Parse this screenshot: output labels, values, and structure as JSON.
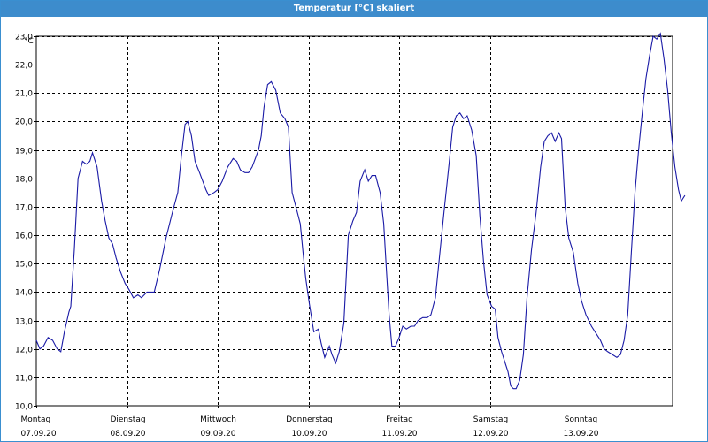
{
  "window": {
    "title": "Temperatur [°C] skaliert"
  },
  "chart_data": {
    "type": "line",
    "title": "Temperatur [°C] skaliert",
    "ylabel": "°C",
    "ylim": [
      10.0,
      23.0
    ],
    "xlim": [
      0,
      7
    ],
    "grid": true,
    "y_ticks": [
      "10,0",
      "11,0",
      "12,0",
      "13,0",
      "14,0",
      "15,0",
      "16,0",
      "17,0",
      "18,0",
      "19,0",
      "20,0",
      "21,0",
      "22,0",
      "23,0"
    ],
    "x_ticks": [
      {
        "day": "Montag",
        "date": "07.09.20"
      },
      {
        "day": "Dienstag",
        "date": "08.09.20"
      },
      {
        "day": "Mittwoch",
        "date": "09.09.20"
      },
      {
        "day": "Donnerstag",
        "date": "10.09.20"
      },
      {
        "day": "Freitag",
        "date": "11.09.20"
      },
      {
        "day": "Samstag",
        "date": "12.09.20"
      },
      {
        "day": "Sonntag",
        "date": "13.09.20"
      }
    ],
    "series": [
      {
        "color": "#1a1aa6",
        "points": [
          [
            0.0,
            12.3
          ],
          [
            0.04,
            12.0
          ],
          [
            0.08,
            12.1
          ],
          [
            0.13,
            12.4
          ],
          [
            0.18,
            12.3
          ],
          [
            0.23,
            12.0
          ],
          [
            0.27,
            11.9
          ],
          [
            0.31,
            12.6
          ],
          [
            0.36,
            13.3
          ],
          [
            0.38,
            13.5
          ],
          [
            0.42,
            15.5
          ],
          [
            0.46,
            18.0
          ],
          [
            0.51,
            18.6
          ],
          [
            0.55,
            18.5
          ],
          [
            0.59,
            18.6
          ],
          [
            0.62,
            18.9
          ],
          [
            0.67,
            18.4
          ],
          [
            0.72,
            17.2
          ],
          [
            0.76,
            16.5
          ],
          [
            0.8,
            15.9
          ],
          [
            0.84,
            15.7
          ],
          [
            0.88,
            15.2
          ],
          [
            0.93,
            14.7
          ],
          [
            0.98,
            14.3
          ],
          [
            1.02,
            14.1
          ],
          [
            1.07,
            13.8
          ],
          [
            1.12,
            13.9
          ],
          [
            1.16,
            13.8
          ],
          [
            1.22,
            14.0
          ],
          [
            1.3,
            14.0
          ],
          [
            1.36,
            14.8
          ],
          [
            1.43,
            15.9
          ],
          [
            1.5,
            16.8
          ],
          [
            1.56,
            17.5
          ],
          [
            1.6,
            18.8
          ],
          [
            1.64,
            19.9
          ],
          [
            1.67,
            20.0
          ],
          [
            1.71,
            19.5
          ],
          [
            1.75,
            18.6
          ],
          [
            1.8,
            18.2
          ],
          [
            1.87,
            17.6
          ],
          [
            1.9,
            17.4
          ],
          [
            1.96,
            17.5
          ],
          [
            2.0,
            17.6
          ],
          [
            2.05,
            17.9
          ],
          [
            2.11,
            18.4
          ],
          [
            2.17,
            18.7
          ],
          [
            2.21,
            18.6
          ],
          [
            2.25,
            18.3
          ],
          [
            2.3,
            18.2
          ],
          [
            2.34,
            18.2
          ],
          [
            2.38,
            18.4
          ],
          [
            2.45,
            19.0
          ],
          [
            2.48,
            19.5
          ],
          [
            2.51,
            20.5
          ],
          [
            2.55,
            21.3
          ],
          [
            2.59,
            21.4
          ],
          [
            2.64,
            21.1
          ],
          [
            2.69,
            20.3
          ],
          [
            2.74,
            20.1
          ],
          [
            2.78,
            19.8
          ],
          [
            2.82,
            17.5
          ],
          [
            2.87,
            16.9
          ],
          [
            2.91,
            16.4
          ],
          [
            2.94,
            15.4
          ],
          [
            2.97,
            14.5
          ],
          [
            3.01,
            13.6
          ],
          [
            3.06,
            12.6
          ],
          [
            3.11,
            12.7
          ],
          [
            3.14,
            12.2
          ],
          [
            3.18,
            11.7
          ],
          [
            3.23,
            12.1
          ],
          [
            3.26,
            11.8
          ],
          [
            3.3,
            11.5
          ],
          [
            3.34,
            11.9
          ],
          [
            3.39,
            12.9
          ],
          [
            3.44,
            16.0
          ],
          [
            3.49,
            16.5
          ],
          [
            3.53,
            16.8
          ],
          [
            3.57,
            17.9
          ],
          [
            3.62,
            18.3
          ],
          [
            3.66,
            17.9
          ],
          [
            3.7,
            18.1
          ],
          [
            3.74,
            18.1
          ],
          [
            3.79,
            17.5
          ],
          [
            3.83,
            16.4
          ],
          [
            3.86,
            14.8
          ],
          [
            3.89,
            13.2
          ],
          [
            3.92,
            12.1
          ],
          [
            3.96,
            12.1
          ],
          [
            4.0,
            12.4
          ],
          [
            4.04,
            12.8
          ],
          [
            4.08,
            12.7
          ],
          [
            4.13,
            12.8
          ],
          [
            4.17,
            12.8
          ],
          [
            4.21,
            13.0
          ],
          [
            4.26,
            13.1
          ],
          [
            4.31,
            13.1
          ],
          [
            4.35,
            13.2
          ],
          [
            4.4,
            13.8
          ],
          [
            4.45,
            15.4
          ],
          [
            4.5,
            17.0
          ],
          [
            4.55,
            18.5
          ],
          [
            4.59,
            19.8
          ],
          [
            4.63,
            20.2
          ],
          [
            4.67,
            20.3
          ],
          [
            4.71,
            20.1
          ],
          [
            4.75,
            20.2
          ],
          [
            4.8,
            19.7
          ],
          [
            4.85,
            18.8
          ],
          [
            4.89,
            16.7
          ],
          [
            4.93,
            15.1
          ],
          [
            4.97,
            13.9
          ],
          [
            5.02,
            13.5
          ],
          [
            5.06,
            13.4
          ],
          [
            5.09,
            12.4
          ],
          [
            5.13,
            11.9
          ],
          [
            5.17,
            11.5
          ],
          [
            5.2,
            11.2
          ],
          [
            5.23,
            10.7
          ],
          [
            5.26,
            10.6
          ],
          [
            5.29,
            10.6
          ],
          [
            5.33,
            10.9
          ],
          [
            5.37,
            11.8
          ],
          [
            5.41,
            13.8
          ],
          [
            5.46,
            15.5
          ],
          [
            5.51,
            16.8
          ],
          [
            5.56,
            18.4
          ],
          [
            5.6,
            19.3
          ],
          [
            5.64,
            19.5
          ],
          [
            5.68,
            19.6
          ],
          [
            5.72,
            19.3
          ],
          [
            5.76,
            19.6
          ],
          [
            5.79,
            19.4
          ],
          [
            5.83,
            17.0
          ],
          [
            5.87,
            15.9
          ],
          [
            5.92,
            15.4
          ],
          [
            5.97,
            14.3
          ],
          [
            6.01,
            13.7
          ],
          [
            6.06,
            13.2
          ],
          [
            6.12,
            12.8
          ],
          [
            6.18,
            12.5
          ],
          [
            6.22,
            12.3
          ],
          [
            6.26,
            12.0
          ],
          [
            6.3,
            11.9
          ],
          [
            6.35,
            11.8
          ],
          [
            6.4,
            11.7
          ],
          [
            6.44,
            11.8
          ],
          [
            6.48,
            12.3
          ],
          [
            6.52,
            13.2
          ],
          [
            6.56,
            15.4
          ],
          [
            6.6,
            17.5
          ],
          [
            6.64,
            19.0
          ],
          [
            6.68,
            20.3
          ],
          [
            6.72,
            21.5
          ],
          [
            6.76,
            22.3
          ],
          [
            6.8,
            23.0
          ],
          [
            6.84,
            22.9
          ],
          [
            6.88,
            23.1
          ],
          [
            6.92,
            22.2
          ],
          [
            6.96,
            21.1
          ],
          [
            7.0,
            19.6
          ],
          [
            7.04,
            18.4
          ],
          [
            7.08,
            17.6
          ],
          [
            7.11,
            17.2
          ],
          [
            7.15,
            17.4
          ]
        ]
      }
    ]
  }
}
